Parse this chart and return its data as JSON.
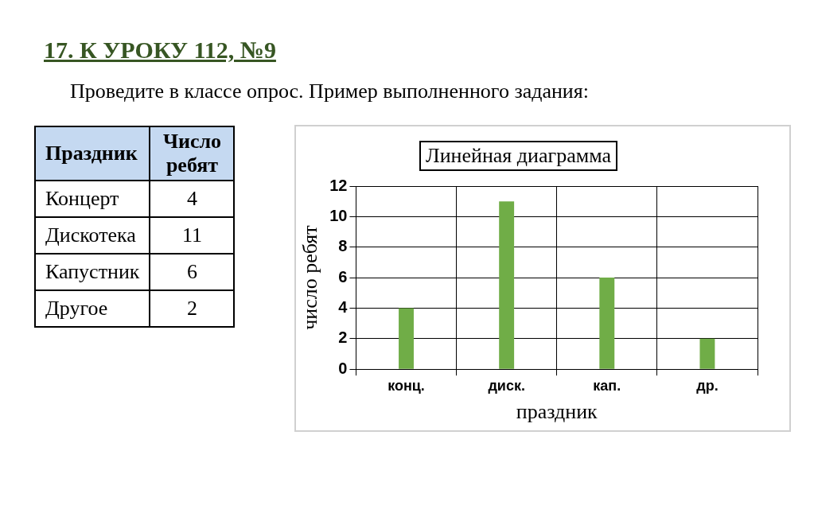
{
  "chart_data": {
    "type": "bar",
    "title": "Линейная диаграмма",
    "categories": [
      "конц.",
      "диск.",
      "кап.",
      "др."
    ],
    "values": [
      4,
      11,
      6,
      2
    ],
    "color": "#70ad47",
    "xlabel": "праздник",
    "ylabel": "число ребят",
    "ylim": [
      0,
      12
    ],
    "yticks": [
      0,
      2,
      4,
      6,
      8,
      10,
      12
    ],
    "grid": true,
    "annotations": [
      "17. К УРОКУ 112, №9",
      "Проведите в классе опрос. Пример выполненного задания:",
      "Праздник",
      "Число ребят",
      "Концерт",
      "4",
      "Дискотека",
      "11",
      "Капустник",
      "6",
      "Другое",
      "2"
    ]
  }
}
